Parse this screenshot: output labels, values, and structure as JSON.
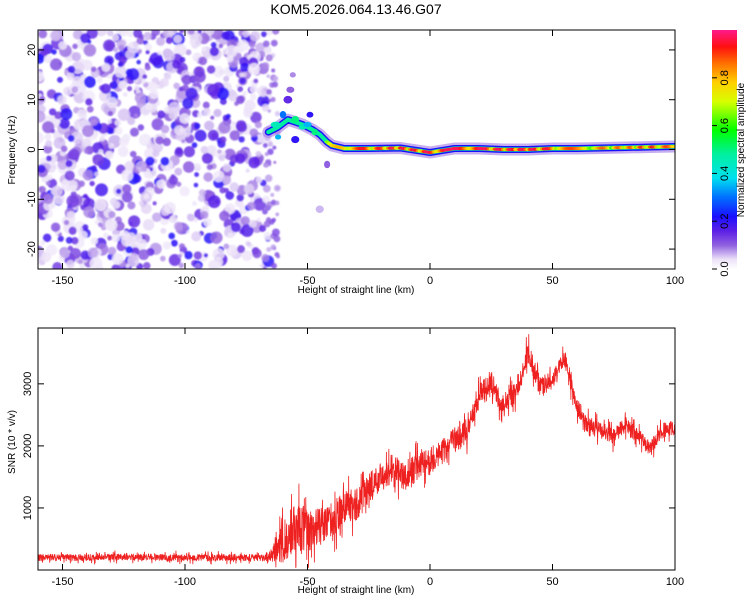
{
  "title": "KOM5.2026.064.13.46.G07",
  "chart_data": [
    {
      "type": "heatmap",
      "title": "KOM5.2026.064.13.46.G07",
      "xlabel": "Height of straight line (km)",
      "ylabel": "Frequency (Hz)",
      "xlim": [
        -160,
        100
      ],
      "ylim": [
        -24,
        24
      ],
      "xticks": [
        -150,
        -100,
        -50,
        0,
        50,
        100
      ],
      "xtick_labels": [
        "-150",
        "-100",
        "-50",
        "0",
        "50",
        "100"
      ],
      "yticks": [
        -20,
        -10,
        0,
        10,
        20
      ],
      "ytick_labels": [
        "-20",
        "-10",
        "0",
        "10",
        "20"
      ],
      "colorbar": {
        "label": "Normalized spectral amplitude",
        "range": [
          0.0,
          1.0
        ],
        "ticks": [
          0.0,
          0.2,
          0.4,
          0.6,
          0.8
        ],
        "tick_labels": [
          "0.0",
          "0.2",
          "0.4",
          "0.6",
          "0.8"
        ]
      },
      "noise_region": {
        "x_from": -160,
        "x_to": -66,
        "freq_from": -24,
        "freq_to": 24
      },
      "tone_ridge": [
        {
          "x": -66,
          "freq": 3.5,
          "amp": 0.45
        },
        {
          "x": -62,
          "freq": 4.5,
          "amp": 0.5
        },
        {
          "x": -58,
          "freq": 6.0,
          "amp": 0.45
        },
        {
          "x": -55,
          "freq": 5.5,
          "amp": 0.5
        },
        {
          "x": -52,
          "freq": 5.0,
          "amp": 0.45
        },
        {
          "x": -48,
          "freq": 4.0,
          "amp": 0.5
        },
        {
          "x": -45,
          "freq": 3.0,
          "amp": 0.45
        },
        {
          "x": -42,
          "freq": 1.5,
          "amp": 0.6
        },
        {
          "x": -40,
          "freq": 0.8,
          "amp": 0.7
        },
        {
          "x": -35,
          "freq": 0.2,
          "amp": 0.9
        },
        {
          "x": -25,
          "freq": 0.2,
          "amp": 0.85
        },
        {
          "x": -12,
          "freq": 0.3,
          "amp": 0.9
        },
        {
          "x": 0,
          "freq": -0.6,
          "amp": 0.9
        },
        {
          "x": 10,
          "freq": 0.2,
          "amp": 0.95
        },
        {
          "x": 20,
          "freq": 0.2,
          "amp": 0.95
        },
        {
          "x": 30,
          "freq": 0.0,
          "amp": 0.9
        },
        {
          "x": 40,
          "freq": 0.0,
          "amp": 0.95
        },
        {
          "x": 50,
          "freq": 0.2,
          "amp": 0.85
        },
        {
          "x": 60,
          "freq": 0.2,
          "amp": 0.8
        },
        {
          "x": 70,
          "freq": 0.3,
          "amp": 0.8
        },
        {
          "x": 80,
          "freq": 0.4,
          "amp": 0.8
        },
        {
          "x": 90,
          "freq": 0.5,
          "amp": 0.85
        },
        {
          "x": 100,
          "freq": 0.6,
          "amp": 0.8
        }
      ]
    },
    {
      "type": "line",
      "xlabel": "Height of straight line (km)",
      "ylabel": "SNR (10 * v/v)",
      "xlim": [
        -160,
        100
      ],
      "ylim": [
        0,
        3900
      ],
      "xticks": [
        -150,
        -100,
        -50,
        0,
        50,
        100
      ],
      "xtick_labels": [
        "-150",
        "-100",
        "-50",
        "0",
        "50",
        "100"
      ],
      "yticks": [
        1000,
        2000,
        3000
      ],
      "ytick_labels": [
        "1000",
        "2000",
        "3000"
      ],
      "series": [
        {
          "name": "SNR",
          "color": "#ee2020",
          "envelope_x": [
            -160,
            -140,
            -120,
            -100,
            -80,
            -66,
            -60,
            -55,
            -50,
            -45,
            -40,
            -35,
            -30,
            -25,
            -20,
            -15,
            -10,
            -5,
            0,
            5,
            10,
            15,
            20,
            25,
            30,
            35,
            40,
            45,
            50,
            55,
            60,
            65,
            70,
            75,
            80,
            85,
            90,
            95,
            100
          ],
          "envelope_y": [
            200,
            200,
            210,
            200,
            200,
            200,
            450,
            700,
            650,
            700,
            800,
            1000,
            1050,
            1300,
            1500,
            1650,
            1450,
            1700,
            1750,
            1900,
            2100,
            2250,
            2800,
            3000,
            2650,
            2850,
            3500,
            2950,
            3050,
            3400,
            2650,
            2300,
            2250,
            2150,
            2350,
            2150,
            1950,
            2250,
            2300
          ],
          "noise_amplitude": [
            70,
            70,
            70,
            70,
            70,
            70,
            420,
            500,
            450,
            380,
            350,
            350,
            320,
            320,
            300,
            300,
            300,
            300,
            280,
            260,
            260,
            260,
            260,
            240,
            240,
            220,
            220,
            220,
            200,
            200,
            180,
            180,
            170,
            160,
            160,
            160,
            150,
            150,
            150
          ]
        }
      ]
    }
  ]
}
